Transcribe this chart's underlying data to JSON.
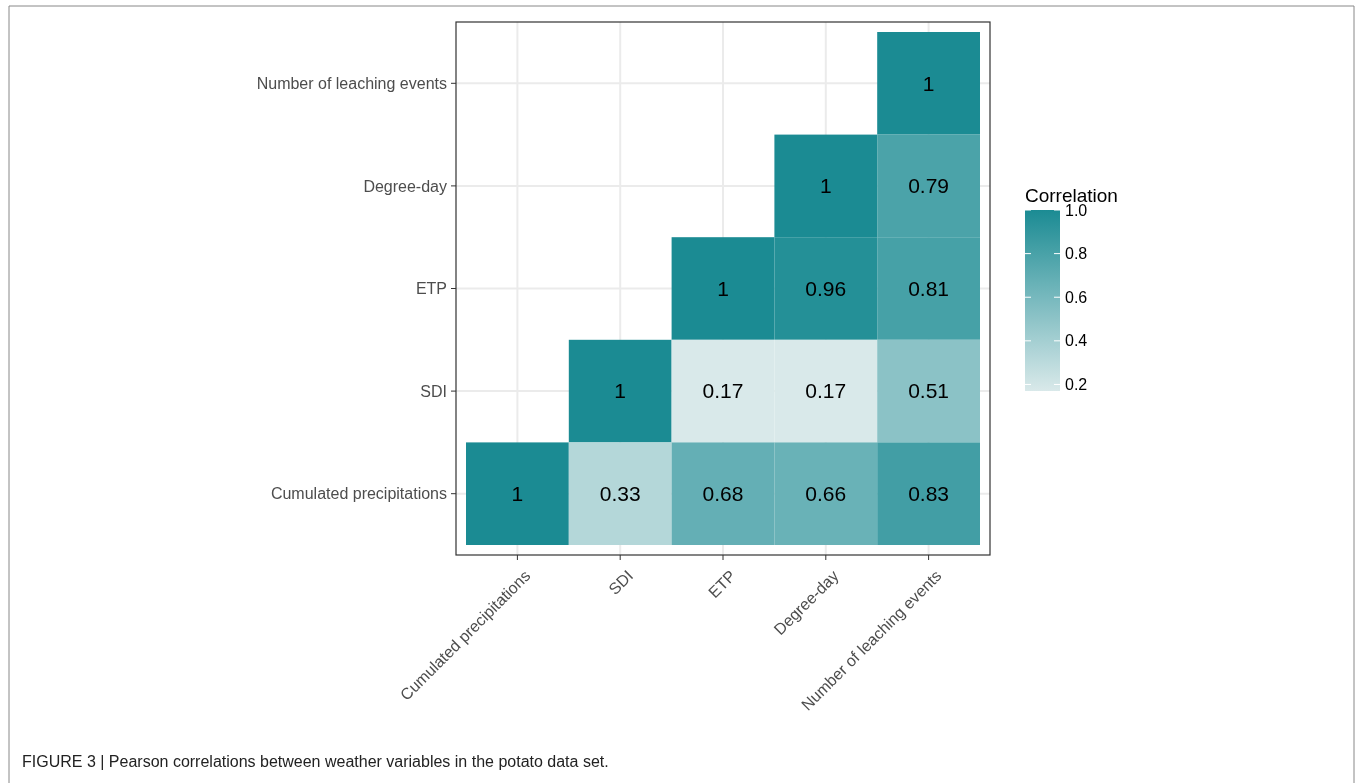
{
  "chart_data": {
    "type": "heatmap",
    "categories": [
      "Cumulated precipitations",
      "SDI",
      "ETP",
      "Degree-day",
      "Number of leaching events"
    ],
    "y_categories": [
      "Number of leaching events",
      "Degree-day",
      "ETP",
      "SDI",
      "Cumulated precipitations"
    ],
    "cells": [
      [
        null,
        null,
        null,
        null,
        1
      ],
      [
        null,
        null,
        null,
        1,
        0.79
      ],
      [
        null,
        null,
        1,
        0.96,
        0.81
      ],
      [
        null,
        1,
        0.17,
        0.17,
        0.51
      ],
      [
        1,
        0.33,
        0.68,
        0.66,
        0.83
      ]
    ],
    "data_labels": true,
    "legend_title": "Correlation",
    "clim": [
      0.17,
      1
    ],
    "cticks": [
      {
        "value": 1,
        "label": "1.0"
      },
      0.8,
      0.6,
      0.4,
      0.2
    ],
    "colors": [
      "#d9e9ea",
      "#1b8b93"
    ],
    "grid": true,
    "annotations": [
      "FIGURE 3 | Pearson correlations between weather variables in the potato data set."
    ]
  }
}
